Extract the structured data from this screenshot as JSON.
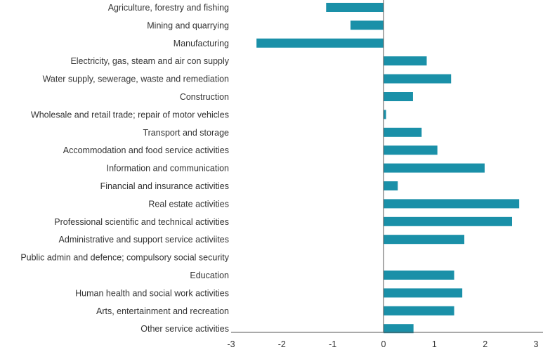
{
  "chart_data": {
    "type": "bar",
    "orientation": "horizontal",
    "title": "",
    "xlabel": "",
    "ylabel": "",
    "xlim": [
      -3,
      3
    ],
    "xticks": [
      "-3",
      "-2",
      "-1",
      "0",
      "1",
      "2",
      "3"
    ],
    "grid": false,
    "legend": "none",
    "bar_color": "#1a90a8",
    "categories": [
      "Agriculture, forestry and fishing",
      "Mining and quarrying",
      "Manufacturing",
      "Electricity, gas, steam and air con supply",
      "Water supply, sewerage, waste and remediation",
      "Construction",
      "Wholesale and retail trade; repair of motor vehicles",
      "Transport and storage",
      "Accommodation and food service activities",
      "Information and communication",
      "Financial and insurance activities",
      "Real estate activities",
      "Professional scientific and technical activities",
      "Administrative and support service activiites",
      "Public admin and defence; compulsory social security",
      "Education",
      "Human health and social work activities",
      "Arts, entertainment and recreation",
      "Other service activities"
    ],
    "values": [
      -1.13,
      -0.65,
      -2.5,
      0.85,
      1.33,
      0.58,
      0.05,
      0.75,
      1.06,
      1.99,
      0.28,
      2.67,
      2.53,
      1.59,
      0.0,
      1.39,
      1.55,
      1.39,
      0.59
    ]
  }
}
